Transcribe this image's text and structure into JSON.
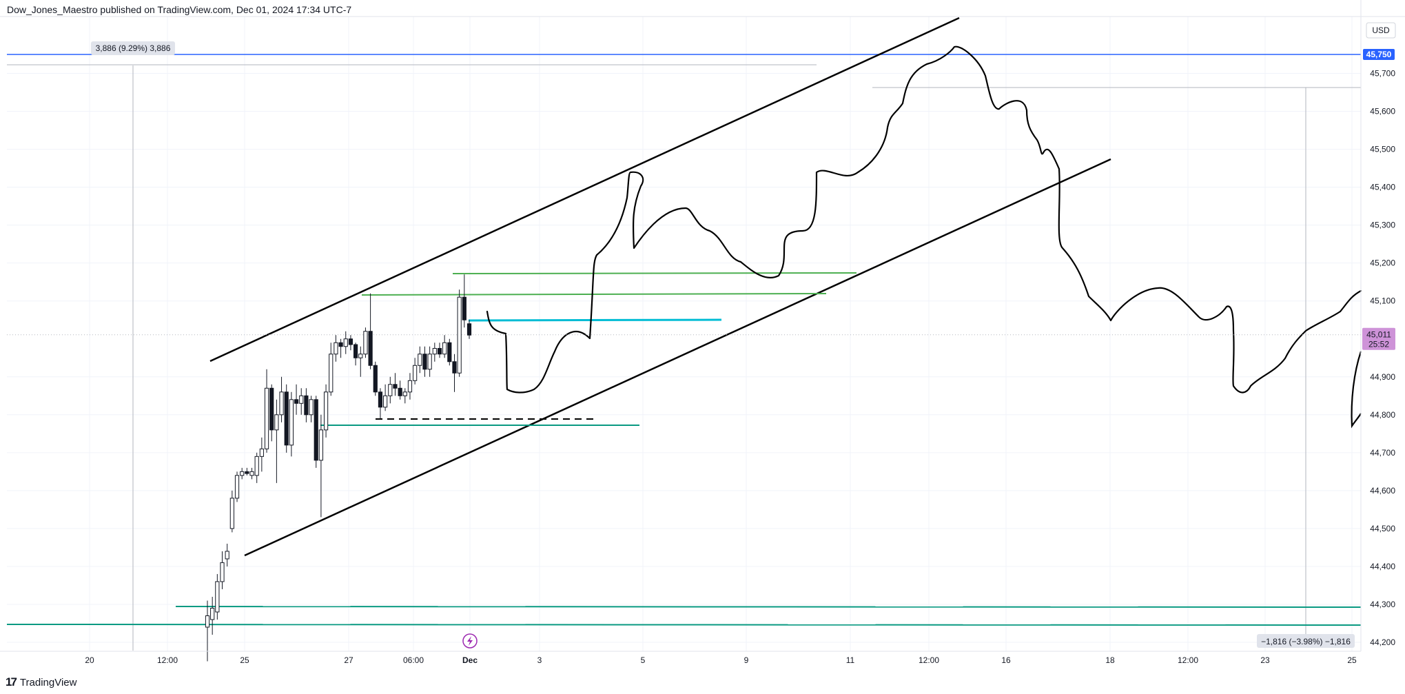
{
  "header": {
    "text": "Dow_Jones_Maestro published on TradingView.com, Dec 01, 2024 17:34 UTC-7"
  },
  "footer": {
    "brand": "TradingView"
  },
  "currency": "USD",
  "colors": {
    "background": "#ffffff",
    "grid": "#f0f3fa",
    "candle": "#131722",
    "green_line": "#4caf50",
    "teal_line": "#089981",
    "cyan_line": "#00bcd4",
    "blue_line": "#2962ff",
    "price_badge": "#ce93d8"
  },
  "chart_data": {
    "type": "candlestick",
    "y_ticks": [
      45700,
      45600,
      45500,
      45400,
      45300,
      45200,
      45100,
      44900,
      44800,
      44700,
      44600,
      44500,
      44400,
      44300,
      44200
    ],
    "ylim": [
      44180,
      45790
    ],
    "x_tick_labels": [
      "20",
      "12:00",
      "25",
      "27",
      "06:00",
      "Dec",
      "3",
      "5",
      "9",
      "11",
      "12:00",
      "16",
      "18",
      "12:00",
      "23",
      "25"
    ],
    "candles": [
      {
        "o": 44240,
        "h": 44310,
        "l": 44150,
        "c": 44270
      },
      {
        "o": 44260,
        "h": 44320,
        "l": 44220,
        "c": 44290
      },
      {
        "o": 44280,
        "h": 44380,
        "l": 44260,
        "c": 44360
      },
      {
        "o": 44360,
        "h": 44440,
        "l": 44340,
        "c": 44410
      },
      {
        "o": 44420,
        "h": 44460,
        "l": 44400,
        "c": 44440
      },
      {
        "o": 44500,
        "h": 44600,
        "l": 44490,
        "c": 44580
      },
      {
        "o": 44580,
        "h": 44650,
        "l": 44570,
        "c": 44640
      },
      {
        "o": 44640,
        "h": 44660,
        "l": 44630,
        "c": 44650
      },
      {
        "o": 44650,
        "h": 44660,
        "l": 44640,
        "c": 44645
      },
      {
        "o": 44640,
        "h": 44660,
        "l": 44630,
        "c": 44650
      },
      {
        "o": 44640,
        "h": 44700,
        "l": 44620,
        "c": 44690
      },
      {
        "o": 44690,
        "h": 44740,
        "l": 44650,
        "c": 44710
      },
      {
        "o": 44710,
        "h": 44920,
        "l": 44700,
        "c": 44870
      },
      {
        "o": 44870,
        "h": 44880,
        "l": 44730,
        "c": 44760
      },
      {
        "o": 44760,
        "h": 44840,
        "l": 44620,
        "c": 44800
      },
      {
        "o": 44800,
        "h": 44900,
        "l": 44780,
        "c": 44860
      },
      {
        "o": 44860,
        "h": 44880,
        "l": 44700,
        "c": 44720
      },
      {
        "o": 44720,
        "h": 44860,
        "l": 44690,
        "c": 44840
      },
      {
        "o": 44840,
        "h": 44880,
        "l": 44800,
        "c": 44830
      },
      {
        "o": 44830,
        "h": 44870,
        "l": 44800,
        "c": 44850
      },
      {
        "o": 44850,
        "h": 44870,
        "l": 44780,
        "c": 44800
      },
      {
        "o": 44800,
        "h": 44850,
        "l": 44780,
        "c": 44840
      },
      {
        "o": 44840,
        "h": 44850,
        "l": 44660,
        "c": 44680
      },
      {
        "o": 44680,
        "h": 44800,
        "l": 44530,
        "c": 44760
      },
      {
        "o": 44760,
        "h": 44880,
        "l": 44740,
        "c": 44860
      },
      {
        "o": 44860,
        "h": 44990,
        "l": 44850,
        "c": 44960
      },
      {
        "o": 44960,
        "h": 45010,
        "l": 44940,
        "c": 44990
      },
      {
        "o": 44990,
        "h": 45000,
        "l": 44950,
        "c": 44980
      },
      {
        "o": 44980,
        "h": 45020,
        "l": 44960,
        "c": 45000
      },
      {
        "o": 45000,
        "h": 45010,
        "l": 44970,
        "c": 44985
      },
      {
        "o": 44985,
        "h": 44990,
        "l": 44930,
        "c": 44950
      },
      {
        "o": 44950,
        "h": 44980,
        "l": 44900,
        "c": 44960
      },
      {
        "o": 44960,
        "h": 45030,
        "l": 44950,
        "c": 45020
      },
      {
        "o": 45020,
        "h": 45120,
        "l": 44920,
        "c": 44930
      },
      {
        "o": 44930,
        "h": 44940,
        "l": 44850,
        "c": 44860
      },
      {
        "o": 44860,
        "h": 44870,
        "l": 44790,
        "c": 44820
      },
      {
        "o": 44820,
        "h": 44880,
        "l": 44810,
        "c": 44850
      },
      {
        "o": 44850,
        "h": 44900,
        "l": 44830,
        "c": 44880
      },
      {
        "o": 44880,
        "h": 44910,
        "l": 44850,
        "c": 44870
      },
      {
        "o": 44870,
        "h": 44890,
        "l": 44840,
        "c": 44850
      },
      {
        "o": 44850,
        "h": 44870,
        "l": 44830,
        "c": 44860
      },
      {
        "o": 44860,
        "h": 44910,
        "l": 44840,
        "c": 44890
      },
      {
        "o": 44890,
        "h": 44950,
        "l": 44880,
        "c": 44930
      },
      {
        "o": 44930,
        "h": 44980,
        "l": 44910,
        "c": 44960
      },
      {
        "o": 44960,
        "h": 44980,
        "l": 44900,
        "c": 44920
      },
      {
        "o": 44920,
        "h": 44980,
        "l": 44900,
        "c": 44960
      },
      {
        "o": 44960,
        "h": 44990,
        "l": 44940,
        "c": 44975
      },
      {
        "o": 44975,
        "h": 44990,
        "l": 44950,
        "c": 44960
      },
      {
        "o": 44960,
        "h": 45010,
        "l": 44950,
        "c": 44990
      },
      {
        "o": 44990,
        "h": 45000,
        "l": 44930,
        "c": 44940
      },
      {
        "o": 44940,
        "h": 44960,
        "l": 44860,
        "c": 44910
      },
      {
        "o": 44910,
        "h": 45130,
        "l": 44900,
        "c": 45110
      },
      {
        "o": 45110,
        "h": 45170,
        "l": 45030,
        "c": 45050
      },
      {
        "o": 45040,
        "h": 45050,
        "l": 45000,
        "c": 45010
      }
    ],
    "last_price": "45,011",
    "countdown": "25:52",
    "blue_level_label": "45,750",
    "measure_top": "3,886 (9.29%) 3,886",
    "measure_bottom": "−1,816 (−3.98%) −1,816",
    "blue_level": 45750
  }
}
